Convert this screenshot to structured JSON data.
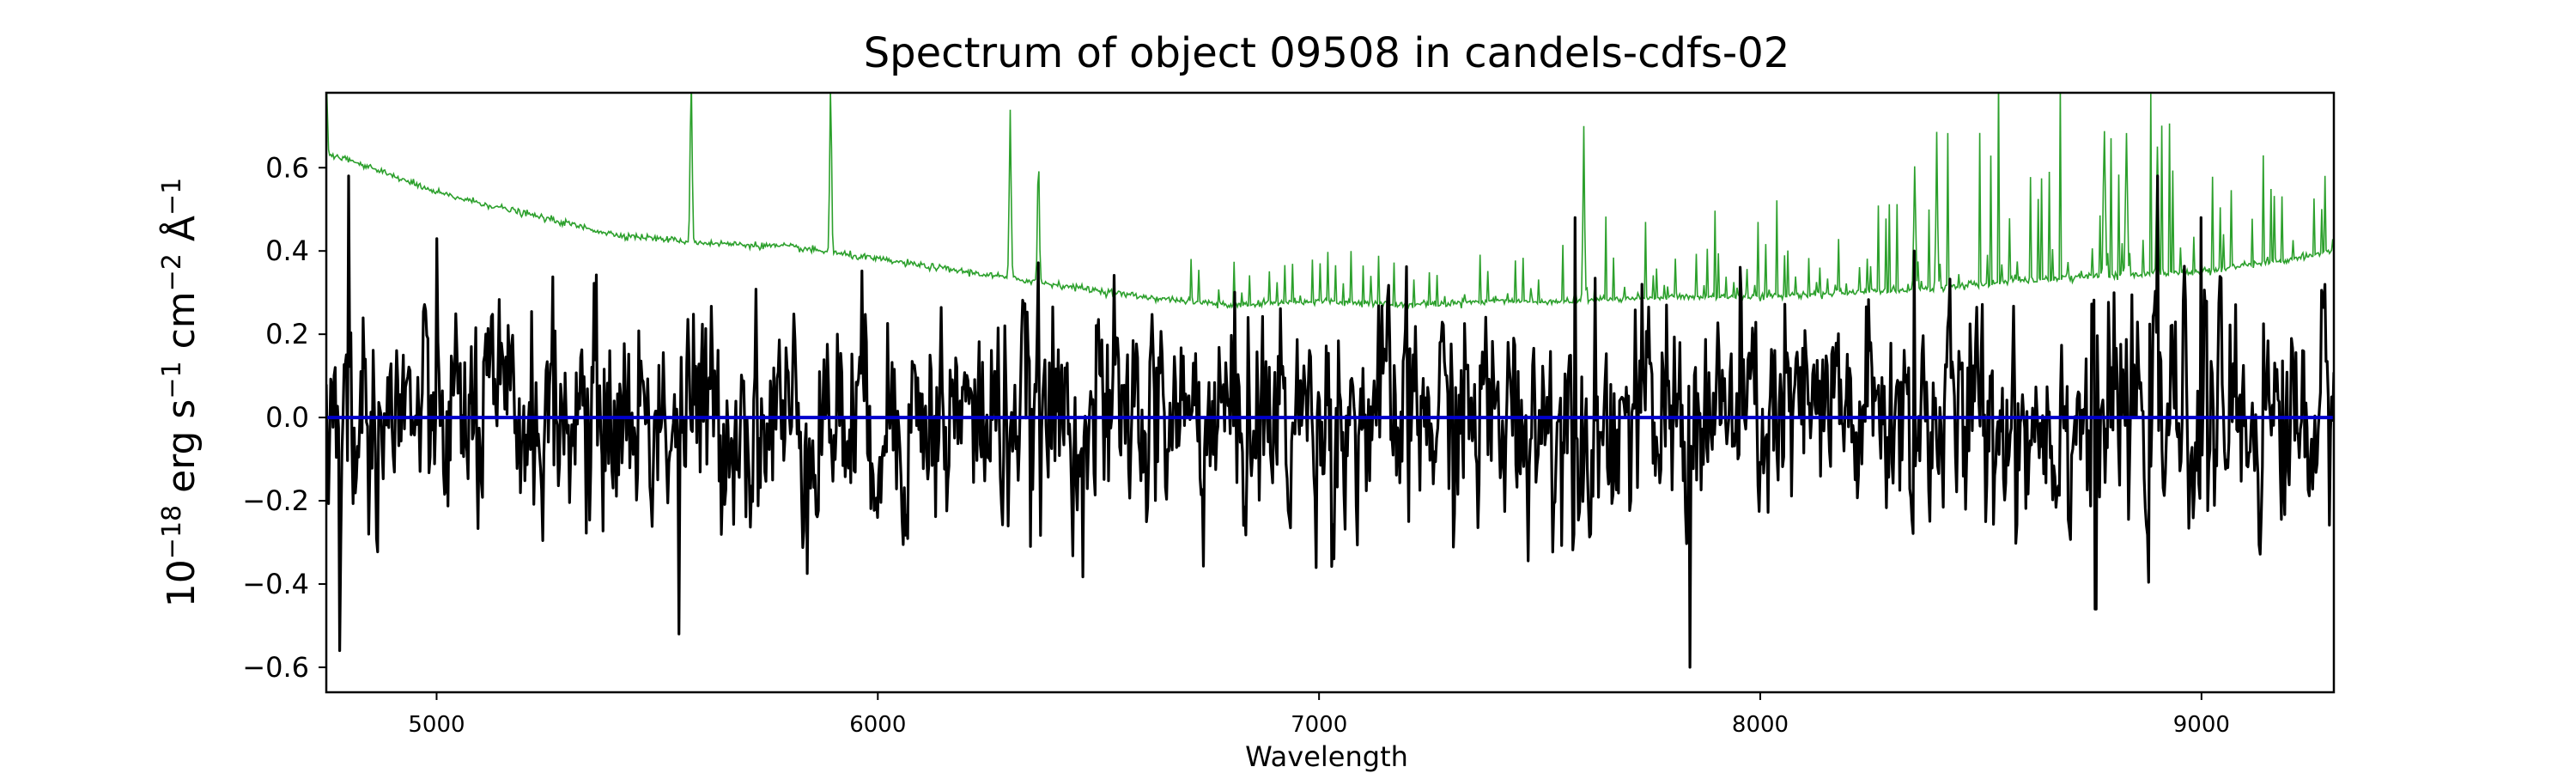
{
  "chart_data": {
    "type": "line",
    "title": "Spectrum of object 09508 in candels-cdfs-02",
    "xlabel": "Wavelength",
    "ylabel_parts": {
      "base": "10",
      "exp_base": "−18",
      "erg": " erg s",
      "exp_s": "−1",
      "cm": " cm",
      "exp_cm": "−2",
      "ang": " Å",
      "exp_ang": "−1"
    },
    "xlim": [
      4750,
      9300
    ],
    "ylim": [
      -0.66,
      0.78
    ],
    "grid": false,
    "xticks": [
      5000,
      6000,
      7000,
      8000,
      9000
    ],
    "yticks": [
      -0.6,
      -0.4,
      -0.2,
      0.0,
      0.2,
      0.4,
      0.6
    ],
    "xtick_labels": [
      "5000",
      "6000",
      "7000",
      "8000",
      "9000"
    ],
    "ytick_labels": [
      "−0.6",
      "−0.4",
      "−0.2",
      "0.0",
      "0.2",
      "0.4",
      "0.6"
    ],
    "series": [
      {
        "role": "sky",
        "color": "#2ca02c",
        "continuum": [
          [
            4750,
            0.63
          ],
          [
            4800,
            0.62
          ],
          [
            5000,
            0.54
          ],
          [
            5200,
            0.49
          ],
          [
            5400,
            0.44
          ],
          [
            5600,
            0.42
          ],
          [
            5800,
            0.41
          ],
          [
            6000,
            0.38
          ],
          [
            6200,
            0.35
          ],
          [
            6400,
            0.32
          ],
          [
            6600,
            0.29
          ],
          [
            6800,
            0.27
          ],
          [
            7000,
            0.28
          ],
          [
            7200,
            0.27
          ],
          [
            7400,
            0.28
          ],
          [
            7600,
            0.28
          ],
          [
            7800,
            0.29
          ],
          [
            8000,
            0.29
          ],
          [
            8200,
            0.3
          ],
          [
            8400,
            0.31
          ],
          [
            8600,
            0.33
          ],
          [
            8800,
            0.34
          ],
          [
            9000,
            0.35
          ],
          [
            9200,
            0.38
          ],
          [
            9300,
            0.4
          ]
        ],
        "lines": [
          [
            4750,
            0.2
          ],
          [
            5577,
            0.4
          ],
          [
            5893,
            0.4
          ],
          [
            6300,
            0.4
          ],
          [
            6364,
            0.3
          ],
          [
            7600,
            0.35
          ],
          [
            8350,
            0.3
          ],
          [
            8400,
            0.3
          ],
          [
            8780,
            0.35
          ],
          [
            8830,
            0.35
          ],
          [
            8900,
            0.3
          ]
        ]
      },
      {
        "role": "spectrum",
        "color": "#000000",
        "x_range": [
          4750,
          9300
        ],
        "n_points": 1800,
        "approx_rms": 0.15,
        "spikes": [
          [
            4800,
            0.58
          ],
          [
            4780,
            -0.56
          ],
          [
            5550,
            -0.52
          ],
          [
            7840,
            -0.6
          ],
          [
            8900,
            -0.5
          ],
          [
            8760,
            -0.46
          ],
          [
            8350,
            0.4
          ],
          [
            9000,
            0.48
          ],
          [
            7580,
            0.48
          ],
          [
            8900,
            0.58
          ]
        ]
      },
      {
        "role": "model",
        "color": "#0000cc",
        "x": [
          4750,
          9300
        ],
        "y": [
          0.0,
          0.0
        ]
      }
    ]
  }
}
